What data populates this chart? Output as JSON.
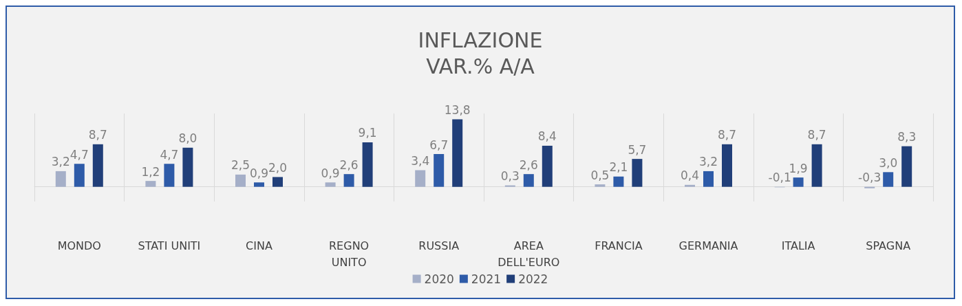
{
  "chart_data": {
    "type": "bar",
    "title": "INFLAZIONE",
    "subtitle": "VAR.% A/A",
    "categories": [
      "MONDO",
      "STATI UNITI",
      "CINA",
      "REGNO\nUNITO",
      "RUSSIA",
      "AREA\nDELL'EURO",
      "FRANCIA",
      "GERMANIA",
      "ITALIA",
      "SPAGNA"
    ],
    "series": [
      {
        "name": "2020",
        "color": "#a5afc8",
        "values": [
          3.2,
          1.2,
          2.5,
          0.9,
          3.4,
          0.3,
          0.5,
          0.4,
          -0.1,
          -0.3
        ],
        "value_labels": [
          "3,2",
          "1,2",
          "2,5",
          "0,9",
          "3,4",
          "0,3",
          "0,5",
          "0,4",
          "-0,1",
          "-0,3"
        ]
      },
      {
        "name": "2021",
        "color": "#2e5ba8",
        "values": [
          4.7,
          4.7,
          0.9,
          2.6,
          6.7,
          2.6,
          2.1,
          3.2,
          1.9,
          3.0
        ],
        "value_labels": [
          "4,7",
          "4,7",
          "0,9",
          "2,6",
          "6,7",
          "2,6",
          "2,1",
          "3,2",
          "1,9",
          "3,0"
        ]
      },
      {
        "name": "2022",
        "color": "#213f79",
        "values": [
          8.7,
          8.0,
          2.0,
          9.1,
          13.8,
          8.4,
          5.7,
          8.7,
          8.7,
          8.3
        ],
        "value_labels": [
          "8,7",
          "8,0",
          "2,0",
          "9,1",
          "13,8",
          "8,4",
          "5,7",
          "8,7",
          "8,7",
          "8,3"
        ]
      }
    ],
    "grid": "x",
    "legend": "bottom"
  }
}
